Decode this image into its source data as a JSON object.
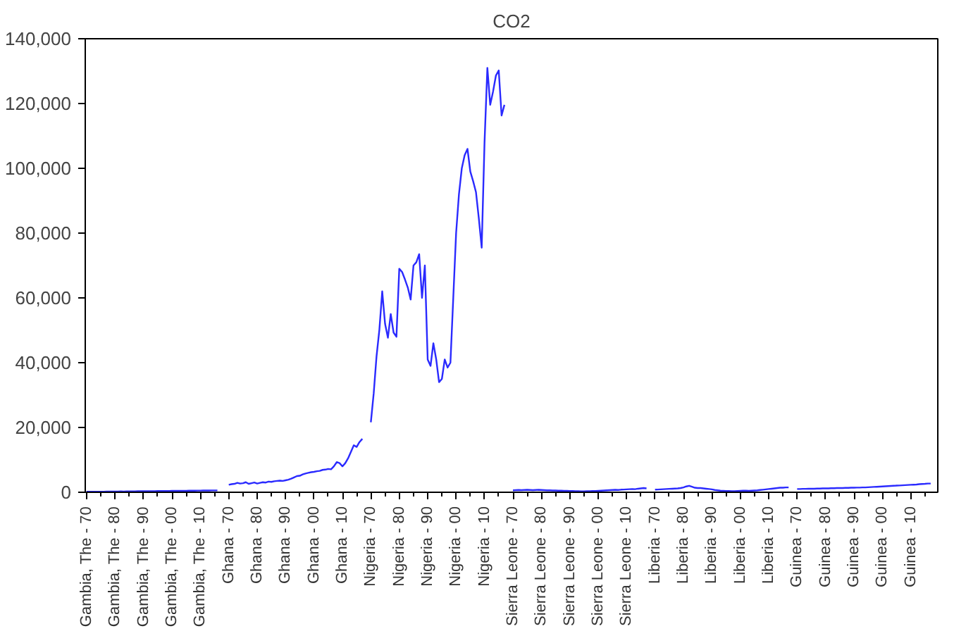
{
  "chart_data": {
    "type": "line",
    "title": "CO2",
    "categories": [
      "Gambia, The - 70",
      null,
      null,
      null,
      null,
      null,
      null,
      null,
      null,
      null,
      "Gambia, The - 80",
      null,
      null,
      null,
      null,
      null,
      null,
      null,
      null,
      null,
      "Gambia, The - 90",
      null,
      null,
      null,
      null,
      null,
      null,
      null,
      null,
      null,
      "Gambia, The - 00",
      null,
      null,
      null,
      null,
      null,
      null,
      null,
      null,
      null,
      "Gambia, The - 10",
      null,
      null,
      null,
      null,
      null,
      null,
      null,
      null,
      null,
      "Ghana - 70",
      null,
      null,
      null,
      null,
      null,
      null,
      null,
      null,
      null,
      "Ghana - 80",
      null,
      null,
      null,
      null,
      null,
      null,
      null,
      null,
      null,
      "Ghana - 90",
      null,
      null,
      null,
      null,
      null,
      null,
      null,
      null,
      null,
      "Ghana - 00",
      null,
      null,
      null,
      null,
      null,
      null,
      null,
      null,
      null,
      "Ghana - 10",
      null,
      null,
      null,
      null,
      null,
      null,
      null,
      null,
      null,
      "Nigeria - 70",
      null,
      null,
      null,
      null,
      null,
      null,
      null,
      null,
      null,
      "Nigeria - 80",
      null,
      null,
      null,
      null,
      null,
      null,
      null,
      null,
      null,
      "Nigeria - 90",
      null,
      null,
      null,
      null,
      null,
      null,
      null,
      null,
      null,
      "Nigeria - 00",
      null,
      null,
      null,
      null,
      null,
      null,
      null,
      null,
      null,
      "Nigeria - 10",
      null,
      null,
      null,
      null,
      null,
      null,
      null,
      null,
      null,
      "Sierra Leone - 70",
      null,
      null,
      null,
      null,
      null,
      null,
      null,
      null,
      null,
      "Sierra Leone - 80",
      null,
      null,
      null,
      null,
      null,
      null,
      null,
      null,
      null,
      "Sierra Leone - 90",
      null,
      null,
      null,
      null,
      null,
      null,
      null,
      null,
      null,
      "Sierra Leone - 00",
      null,
      null,
      null,
      null,
      null,
      null,
      null,
      null,
      null,
      "Sierra Leone - 10",
      null,
      null,
      null,
      null,
      null,
      null,
      null,
      null,
      null,
      "Liberia - 70",
      null,
      null,
      null,
      null,
      null,
      null,
      null,
      null,
      null,
      "Liberia - 80",
      null,
      null,
      null,
      null,
      null,
      null,
      null,
      null,
      null,
      "Liberia - 90",
      null,
      null,
      null,
      null,
      null,
      null,
      null,
      null,
      null,
      "Liberia - 00",
      null,
      null,
      null,
      null,
      null,
      null,
      null,
      null,
      null,
      "Liberia - 10",
      null,
      null,
      null,
      null,
      null,
      null,
      null,
      null,
      null,
      "Guinea - 70",
      null,
      null,
      null,
      null,
      null,
      null,
      null,
      null,
      null,
      "Guinea - 80",
      null,
      null,
      null,
      null,
      null,
      null,
      null,
      null,
      null,
      "Guinea - 90",
      null,
      null,
      null,
      null,
      null,
      null,
      null,
      null,
      null,
      "Guinea - 00",
      null,
      null,
      null,
      null,
      null,
      null,
      null,
      null,
      null,
      "Guinea - 10",
      null,
      null,
      null,
      null,
      null,
      null,
      null,
      null,
      null
    ],
    "series": [
      {
        "color": "#2a2aff",
        "values": [
          150,
          160,
          170,
          160,
          180,
          190,
          200,
          210,
          220,
          230,
          240,
          250,
          260,
          250,
          270,
          280,
          290,
          300,
          310,
          320,
          330,
          340,
          330,
          350,
          360,
          370,
          380,
          390,
          400,
          410,
          420,
          430,
          440,
          450,
          460,
          470,
          480,
          490,
          500,
          510,
          520,
          530,
          540,
          550,
          560,
          570,
          580,
          null,
          null,
          null,
          2300,
          2500,
          2600,
          2900,
          2700,
          2800,
          3100,
          2600,
          2800,
          3000,
          2700,
          2900,
          3100,
          3000,
          3300,
          3200,
          3400,
          3500,
          3600,
          3500,
          3700,
          3900,
          4200,
          4600,
          5000,
          5100,
          5500,
          5800,
          6000,
          6200,
          6300,
          6500,
          6600,
          6900,
          7000,
          7200,
          7100,
          8000,
          9300,
          9000,
          8000,
          9000,
          10500,
          12500,
          14500,
          14000,
          15500,
          16500,
          null,
          null,
          21600,
          30500,
          42000,
          50200,
          62000,
          52000,
          47700,
          55000,
          49300,
          48000,
          69000,
          68000,
          65700,
          63200,
          59500,
          70000,
          71000,
          73500,
          60000,
          70000,
          41000,
          39000,
          46000,
          41000,
          34000,
          35000,
          41000,
          38500,
          40000,
          60000,
          80000,
          92000,
          100000,
          104000,
          106000,
          99000,
          96000,
          92600,
          84500,
          75500,
          108000,
          131000,
          119600,
          123700,
          128600,
          130200,
          116300,
          119600,
          null,
          null,
          600,
          650,
          700,
          650,
          700,
          750,
          700,
          650,
          700,
          750,
          700,
          650,
          600,
          600,
          550,
          550,
          500,
          500,
          450,
          450,
          400,
          400,
          350,
          350,
          300,
          300,
          350,
          350,
          400,
          400,
          450,
          500,
          550,
          600,
          650,
          700,
          750,
          700,
          800,
          850,
          900,
          950,
          1000,
          950,
          1100,
          1200,
          1300,
          1200,
          null,
          null,
          800,
          850,
          900,
          950,
          1000,
          1050,
          1100,
          1150,
          1200,
          1300,
          1500,
          1800,
          2000,
          1700,
          1400,
          1300,
          1300,
          1200,
          1100,
          1000,
          900,
          700,
          600,
          500,
          450,
          400,
          400,
          350,
          350,
          400,
          450,
          500,
          500,
          450,
          500,
          550,
          600,
          700,
          800,
          900,
          1000,
          1100,
          1200,
          1300,
          1400,
          1400,
          1500,
          1500,
          null,
          null,
          1000,
          1000,
          1050,
          1050,
          1100,
          1100,
          1100,
          1150,
          1150,
          1200,
          1200,
          1200,
          1250,
          1250,
          1300,
          1300,
          1300,
          1350,
          1350,
          1400,
          1400,
          1450,
          1450,
          1500,
          1500,
          1550,
          1600,
          1650,
          1700,
          1750,
          1800,
          1850,
          1900,
          1950,
          2000,
          2050,
          2100,
          2150,
          2200,
          2250,
          2300,
          2350,
          2400,
          2500,
          2550,
          2600,
          2700,
          2700,
          null,
          null
        ]
      }
    ],
    "ylim": [
      0,
      140000
    ],
    "yticks": [
      0,
      {
        "value": 20000,
        "label": "20,000"
      },
      {
        "value": 40000,
        "label": "40,000"
      },
      {
        "value": 60000,
        "label": "60,000"
      },
      {
        "value": 80000,
        "label": "80,000"
      },
      {
        "value": 100000,
        "label": "100,000"
      },
      {
        "value": 120000,
        "label": "120,000"
      },
      {
        "value": 140000,
        "label": "140,000"
      }
    ]
  }
}
